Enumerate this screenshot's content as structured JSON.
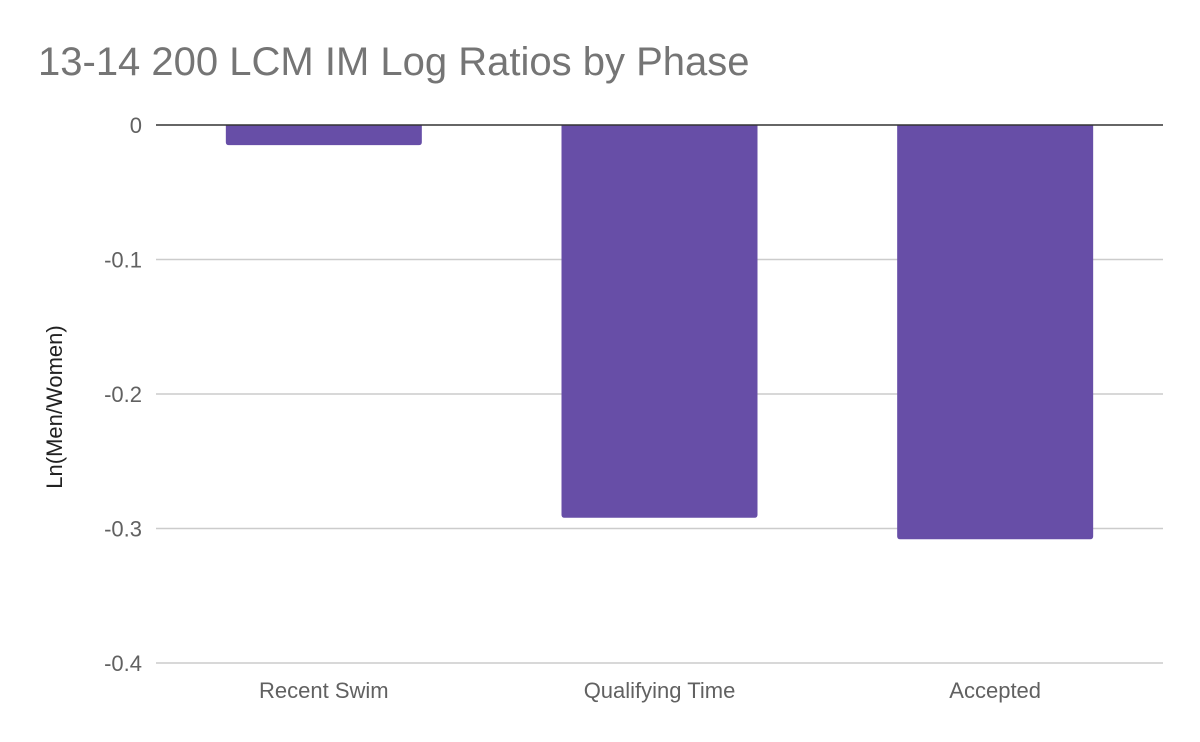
{
  "chart_data": {
    "type": "bar",
    "title": "13-14 200 LCM IM Log Ratios by Phase",
    "xlabel": "",
    "ylabel": "Ln(Men/Women)",
    "categories": [
      "Recent Swim",
      "Qualifying Time",
      "Accepted"
    ],
    "series": [
      {
        "values": [
          -0.015,
          -0.292,
          -0.308
        ]
      }
    ],
    "ylim": [
      -0.4,
      0
    ],
    "yticks": [
      0,
      -0.1,
      -0.2,
      -0.3,
      -0.4
    ],
    "ytick_labels": [
      "0",
      "-0.1",
      "-0.2",
      "-0.3",
      "-0.4"
    ],
    "grid": true,
    "legend": "none",
    "colors": {
      "bar": "#674ea7",
      "grid": "#cccccc",
      "zero_line": "#333333",
      "title": "#757575",
      "tick_label": "#616161",
      "axis_title": "#222222"
    }
  }
}
